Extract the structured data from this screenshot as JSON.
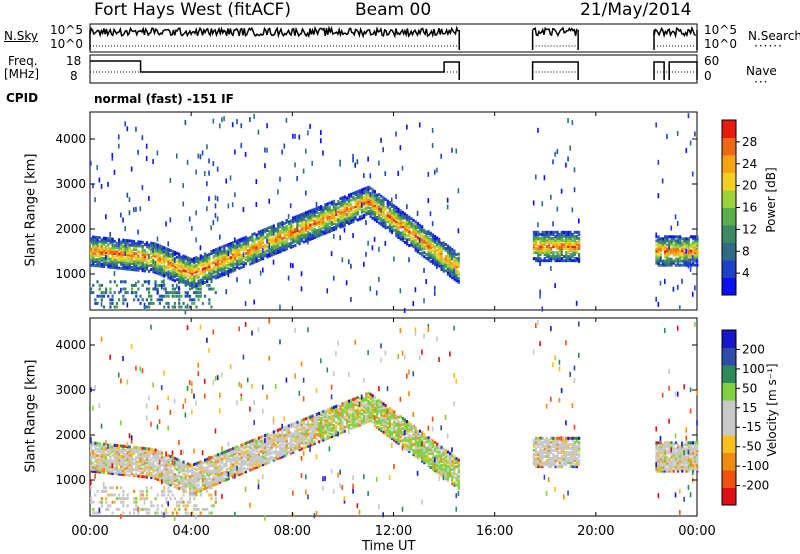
{
  "header": {
    "station": "Fort Hays West (fitACF)",
    "beam": "Beam 00",
    "date": "21/May/2014"
  },
  "panels": {
    "nsky_label": "N.Sky",
    "nsky_ticks": [
      "10^5",
      "10^0"
    ],
    "nsearch_label": "N.Search",
    "nsearch_ticks": [
      "10^5",
      "10^0"
    ],
    "freq_label": "Freq.",
    "freq_unit": "[MHz]",
    "freq_ticks": [
      "18",
      "8"
    ],
    "nave_label": "Nave",
    "nave_ticks": [
      "60",
      "0"
    ],
    "cpid_label": "CPID",
    "cpid_value": "normal (fast) -151 IF"
  },
  "colors": {
    "power": [
      "#0a10f0",
      "#1f40c8",
      "#2f6c86",
      "#3c8a64",
      "#57b04a",
      "#9cd13c",
      "#f2d020",
      "#f5a414",
      "#f06814",
      "#e81a10"
    ],
    "velocity": [
      "#e01010",
      "#f05010",
      "#f08c10",
      "#f5c020",
      "#c8c8c8",
      "#c8c8c8",
      "#80d040",
      "#2e8a5a",
      "#2f4da8",
      "#1616c8"
    ]
  },
  "chart_data": [
    {
      "type": "heatmap",
      "panel": "power",
      "xlabel": "",
      "ylabel": "Slant Range [km]",
      "ylim": [
        200,
        4600
      ],
      "yticks": [
        "1000",
        "2000",
        "3000",
        "4000"
      ],
      "colorbar_label": "Power [dB]",
      "colorbar_ticks": [
        "4",
        "8",
        "12",
        "16",
        "20",
        "24",
        "28"
      ],
      "colorbar_range": [
        0,
        32
      ]
    },
    {
      "type": "heatmap",
      "panel": "velocity",
      "xlabel": "Time UT",
      "ylabel": "Slant Range [km]",
      "ylim": [
        200,
        4600
      ],
      "yticks": [
        "1000",
        "2000",
        "3000",
        "4000"
      ],
      "xticks": [
        "00:00",
        "04:00",
        "08:00",
        "12:00",
        "16:00",
        "20:00",
        "00:00"
      ],
      "colorbar_label": "Velocity [m s⁻¹]",
      "colorbar_ticks": [
        "-200",
        "-100",
        "-50",
        "-15",
        "15",
        "50",
        "100",
        "200"
      ]
    }
  ]
}
